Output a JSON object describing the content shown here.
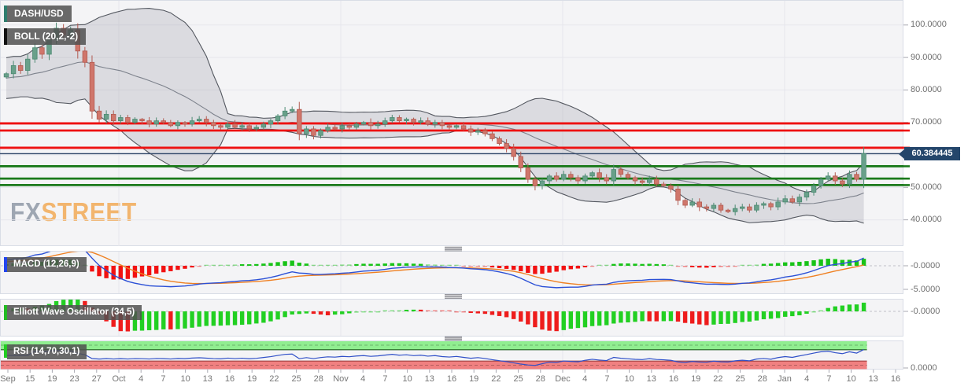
{
  "pair": "DASH/USD",
  "indicators": {
    "boll_label": "BOLL (20,2,-2)",
    "macd_label": "MACD (12,26,9)",
    "ewo_label": "Elliott Wave Oscillator (34,5)",
    "rsi_label": "RSI (14,70,30,1)"
  },
  "watermark": {
    "fx": "FX",
    "street": "STREET"
  },
  "price_badge": "60.384445",
  "y_labels": [
    {
      "text": "100.0000",
      "price": 100
    },
    {
      "text": "90.0000",
      "price": 90
    },
    {
      "text": "80.0000",
      "price": 80
    },
    {
      "text": "70.0000",
      "price": 70
    },
    {
      "text": "50.0000",
      "price": 50
    },
    {
      "text": "40.0000",
      "price": 40
    }
  ],
  "macd_axis_labels": [
    {
      "text": "-0.0000",
      "value": 0
    },
    {
      "text": "-5.0000",
      "value": -5
    }
  ],
  "ewo_axis_labels": [
    {
      "text": "-0.0000",
      "value": 0
    }
  ],
  "rsi_axis_labels": [
    {
      "text": "0.0000",
      "value": 0
    }
  ],
  "x_labels": [
    "Sep",
    "15",
    "19",
    "23",
    "27",
    "Oct",
    "4",
    "7",
    "10",
    "13",
    "16",
    "19",
    "22",
    "25",
    "28",
    "Nov",
    "4",
    "7",
    "10",
    "13",
    "16",
    "19",
    "22",
    "25",
    "28",
    "Dec",
    "4",
    "7",
    "10",
    "13",
    "16",
    "19",
    "22",
    "25",
    "28",
    "Jan",
    "4",
    "7",
    "10",
    "13",
    "16"
  ],
  "month_label_indices": [
    5,
    15,
    25,
    35
  ],
  "colors": {
    "up_candle": "#69a08a",
    "up_candle_border": "#4c8a72",
    "down_candle": "#d0766b",
    "down_candle_border": "#b25a50",
    "bollinger_fill": "rgba(130,134,144,0.22)",
    "bollinger_edge": "#53575f",
    "bollinger_mid": "#7d828c",
    "resistance_line": "#ee1111",
    "support_line": "#1b7a1b",
    "price_line": "#33496b",
    "badge_bg": "#24466b",
    "badge_text": "#ffffff",
    "macd_line": "#2b50d6",
    "macd_signal": "#ef8022",
    "hist_pos": "#17c317",
    "hist_neg": "#f21111",
    "ewo_pos": "#22d022",
    "ewo_neg": "#ee1c1c",
    "rsi_line": "#3050c8",
    "rsi_overbought_band": "#90ee90",
    "rsi_oversold_band": "#f08080",
    "rsi_band_edge_green": "#1f5f1f",
    "rsi_band_edge_red": "#9f4040",
    "label_bg": "rgba(80,80,80,0.85)",
    "label_text": "#ffffff",
    "accent_pair": "#2e7d6e",
    "accent_boll": "#111111",
    "accent_macd": "#2244ee",
    "accent_ewo": "#22bb22",
    "accent_rsi": "#22cc22",
    "watermark_fx": "#9aa2af",
    "watermark_street": "#f2b267",
    "panel_bg": "#f4f4f6",
    "grid": "#e6e6ec",
    "axis_text": "#6f6f6f",
    "tick": "#a8a8b0"
  },
  "chart_data": {
    "type": "candlestick",
    "symbol": "DASH/USD",
    "price_axis_range": [
      35,
      103
    ],
    "levels": {
      "resistance": [
        69.7,
        67.5,
        62.2
      ],
      "support": [
        56.5,
        52.7,
        50.7
      ],
      "last_price": 60.384445
    },
    "indicator_params": {
      "bollinger": {
        "period": 20,
        "stddev": 2
      },
      "macd": {
        "fast": 12,
        "slow": 26,
        "signal": 9
      },
      "ewo": {
        "fast": 5,
        "slow": 34
      },
      "rsi": {
        "period": 14,
        "overbought": 70,
        "oversold": 30
      }
    },
    "warmup_closes": [
      80,
      84,
      88,
      86,
      82,
      78,
      80,
      85,
      88,
      84
    ],
    "closes": [
      85,
      87.5,
      86,
      89.5,
      93,
      91,
      95.5,
      99,
      97,
      98.5,
      92,
      88.5,
      73.5,
      71,
      72.5,
      70.5,
      71.5,
      70,
      71,
      70.5,
      69.5,
      70.5,
      70,
      69,
      70,
      69.5,
      70.5,
      71,
      70,
      69,
      68.5,
      69.5,
      68.5,
      69,
      68,
      68.5,
      69.5,
      70.5,
      72,
      73.5,
      74,
      66.5,
      68,
      66,
      67.5,
      68.5,
      68,
      69,
      68.5,
      69.5,
      70,
      69,
      69.5,
      70.5,
      71.5,
      70.5,
      71,
      70,
      70.5,
      69.5,
      70,
      69,
      68.5,
      69,
      68,
      67,
      67.5,
      66.5,
      65,
      63.5,
      62,
      59.5,
      56,
      52.5,
      50.5,
      52,
      53.5,
      52.5,
      54,
      53,
      52,
      53.5,
      54.5,
      53,
      52,
      55.5,
      54,
      53,
      52,
      51.5,
      52.5,
      51,
      50.5,
      49.5,
      46,
      44.5,
      45.5,
      44,
      43.5,
      44.5,
      43,
      42.5,
      43.5,
      44,
      43,
      44.5,
      45,
      44,
      45.5,
      46.5,
      45.5,
      47,
      48.5,
      50.5,
      52.5,
      53.5,
      52,
      51,
      54,
      52.5,
      60.4
    ]
  }
}
